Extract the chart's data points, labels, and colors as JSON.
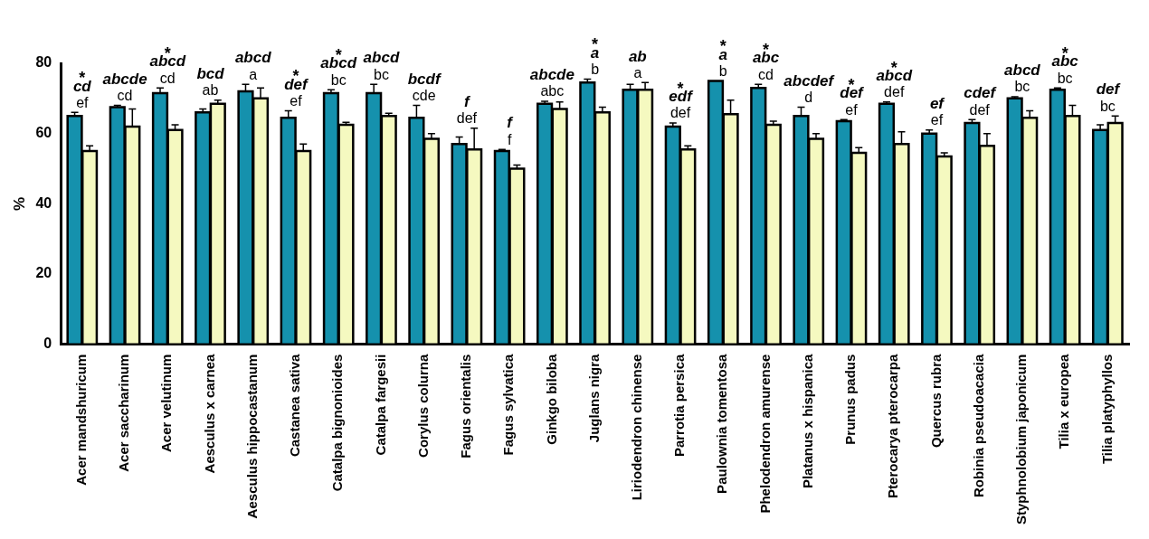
{
  "chart_data": {
    "type": "bar",
    "ylabel": "%",
    "ylim": [
      0,
      80
    ],
    "yticks": [
      0,
      20,
      40,
      60,
      80
    ],
    "grid": false,
    "categories": [
      "Acer mandshuricum",
      "Acer saccharinum",
      "Acer velutinum",
      "Aesculus x carnea",
      "Aesculus hippocastanum",
      "Castanea sativa",
      "Catalpa bignonioides",
      "Catalpa fargesii",
      "Corylus colurna",
      "Fagus orientalis",
      "Fagus sylvatica",
      "Ginkgo biloba",
      "Juglans nigra",
      "Liriodendron chinense",
      "Parrotia persica",
      "Paulownia tomentosa",
      "Phelodendron amurense",
      "Platanus x hispanica",
      "Prunus padus",
      "Pterocarya pterocarpa",
      "Quercus rubra",
      "Robinia pseudoacacia",
      "Styphnolobium japonicum",
      "Tilia x europea",
      "Tilia platyphyllos"
    ],
    "series": [
      {
        "color": "#1591ad",
        "values": [
          65,
          67.5,
          71.5,
          66,
          72,
          64.5,
          71.5,
          71.5,
          64.5,
          57,
          55,
          68.5,
          74.5,
          72.5,
          62,
          75,
          73,
          65,
          63.5,
          68.5,
          60,
          63,
          70,
          72.5,
          61
        ],
        "errors": [
          1,
          0.5,
          1.5,
          1,
          2,
          2,
          1,
          2.5,
          3.5,
          2,
          0.5,
          0.7,
          1,
          1.5,
          1,
          null,
          1,
          2.5,
          0.5,
          0.5,
          1,
          1,
          0.5,
          0.5,
          1.5
        ],
        "value_labels": [
          "cd",
          "abcde",
          "abcd",
          "bcd",
          "abcd",
          "def",
          "abcd",
          "abcd",
          "bcdf",
          "f",
          "f",
          "abcde",
          "a",
          "ab",
          "edf",
          "a",
          "abc",
          "abcdef",
          "def",
          "abcd",
          "ef",
          "cdef",
          "abcd",
          "abc",
          "def"
        ]
      },
      {
        "color": "#f5f9c0",
        "values": [
          55,
          62,
          61,
          68.5,
          70,
          55,
          62.5,
          65,
          58.5,
          55.5,
          50,
          67,
          66,
          72.5,
          55.5,
          65.5,
          62.5,
          58.5,
          54.5,
          57,
          53.5,
          56.5,
          64.5,
          65,
          63
        ],
        "errors": [
          1.5,
          5,
          1.5,
          1,
          3,
          2,
          0.7,
          0.8,
          1.5,
          6,
          1,
          2,
          1.5,
          2,
          1,
          4,
          1,
          1.5,
          1.5,
          3.5,
          1,
          3.5,
          2,
          3,
          2
        ],
        "value_labels": [
          "ef",
          "cd",
          "cd",
          "ab",
          "a",
          "ef",
          "bc",
          "bc",
          "cde",
          "def",
          "f",
          "abc",
          "b",
          "a",
          "def",
          "b",
          "cd",
          "d",
          "ef",
          "def",
          "ef",
          "def",
          "bc",
          "bc",
          "bc"
        ]
      }
    ],
    "annotations": [
      {
        "text": "*",
        "x": "Acer mandshuricum",
        "y": 65
      },
      {
        "text": "*",
        "x": "Acer velutinum",
        "y": 71.5
      },
      {
        "text": "*",
        "x": "Castanea sativa",
        "y": 64.5
      },
      {
        "text": "*",
        "x": "Catalpa bignonioides",
        "y": 71.5
      },
      {
        "text": "*",
        "x": "Juglans nigra",
        "y": 74.5
      },
      {
        "text": "*",
        "x": "Parrotia persica",
        "y": 62
      },
      {
        "text": "*",
        "x": "Paulownia tomentosa",
        "y": 75
      },
      {
        "text": "*",
        "x": "Phelodendron amurense",
        "y": 73
      },
      {
        "text": "*",
        "x": "Prunus padus",
        "y": 63.5
      },
      {
        "text": "*",
        "x": "Pterocarya pterocarpa",
        "y": 68.5
      },
      {
        "text": "*",
        "x": "Tilia x europea",
        "y": 72.5
      }
    ]
  }
}
